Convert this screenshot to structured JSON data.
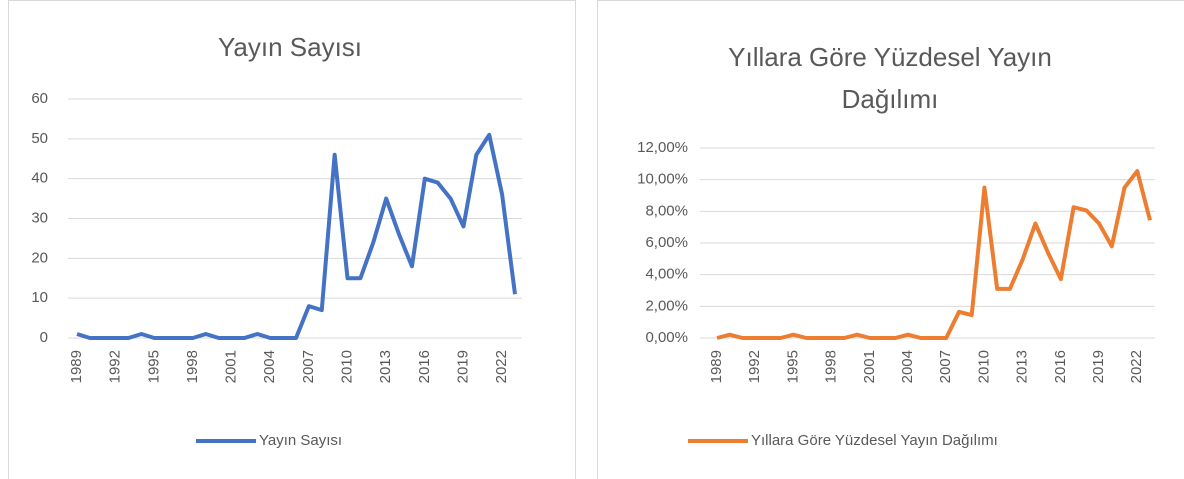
{
  "chart_data": [
    {
      "type": "line",
      "title": "Yayın Sayısı",
      "x": [
        1989,
        1990,
        1991,
        1992,
        1993,
        1994,
        1995,
        1996,
        1997,
        1998,
        1999,
        2000,
        2001,
        2002,
        2003,
        2004,
        2005,
        2006,
        2007,
        2008,
        2009,
        2010,
        2011,
        2012,
        2013,
        2014,
        2015,
        2016,
        2017,
        2018,
        2019,
        2020,
        2021,
        2022,
        2023
      ],
      "series": [
        {
          "name": "Yayın Sayısı",
          "color": "#4472c4",
          "values": [
            1,
            0,
            0,
            0,
            0,
            1,
            0,
            0,
            0,
            0,
            1,
            0,
            0,
            0,
            1,
            0,
            0,
            0,
            8,
            7,
            46,
            15,
            15,
            24,
            35,
            26,
            18,
            40,
            39,
            35,
            28,
            46,
            51,
            36,
            11
          ]
        }
      ],
      "xlim": [
        1989,
        2023
      ],
      "xticks": [
        1989,
        1992,
        1995,
        1998,
        2001,
        2004,
        2007,
        2010,
        2013,
        2016,
        2019,
        2022
      ],
      "ylim": [
        0,
        60
      ],
      "yticks": [
        0,
        10,
        20,
        30,
        40,
        50,
        60
      ],
      "grid": true,
      "legend": "bottom"
    },
    {
      "type": "line",
      "title": "Yıllara Göre Yüzdesel Yayın Dağılımı",
      "x": [
        1989,
        1990,
        1991,
        1992,
        1993,
        1994,
        1995,
        1996,
        1997,
        1998,
        1999,
        2000,
        2001,
        2002,
        2003,
        2004,
        2005,
        2006,
        2007,
        2008,
        2009,
        2010,
        2011,
        2012,
        2013,
        2014,
        2015,
        2016,
        2017,
        2018,
        2019,
        2020,
        2021,
        2022,
        2023
      ],
      "series": [
        {
          "name": "Yıllara Göre Yüzdesel Yayın Dağılımı",
          "color": "#ed7d31",
          "values": [
            0,
            0.21,
            0,
            0,
            0,
            0,
            0.21,
            0,
            0,
            0,
            0,
            0.21,
            0,
            0,
            0,
            0.21,
            0,
            0,
            0,
            1.65,
            1.45,
            9.5,
            3.1,
            3.1,
            4.96,
            7.23,
            5.37,
            3.72,
            8.26,
            8.06,
            7.23,
            5.79,
            9.5,
            10.54,
            7.44
          ]
        }
      ],
      "xlim": [
        1989,
        2023
      ],
      "xticks": [
        1989,
        1992,
        1995,
        1998,
        2001,
        2004,
        2007,
        2010,
        2013,
        2016,
        2019,
        2022
      ],
      "ylim": [
        0,
        12
      ],
      "yticks": [
        {
          "value": 0,
          "label": "0,00%"
        },
        {
          "value": 2,
          "label": "2,00%"
        },
        {
          "value": 4,
          "label": "4,00%"
        },
        {
          "value": 6,
          "label": "6,00%"
        },
        {
          "value": 8,
          "label": "8,00%"
        },
        {
          "value": 10,
          "label": "10,00%"
        },
        {
          "value": 12,
          "label": "12,00%"
        }
      ],
      "grid": true,
      "legend": "bottom"
    }
  ]
}
